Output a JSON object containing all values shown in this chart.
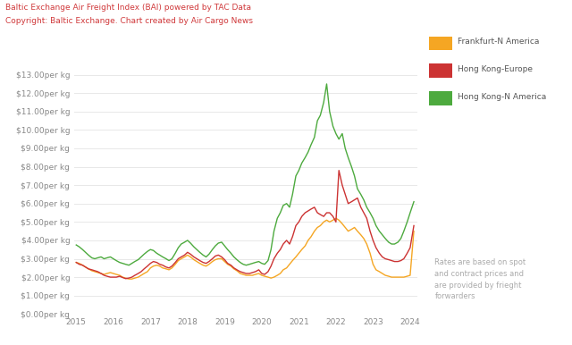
{
  "title_line1": "Baltic Exchange Air Freight Index (BAI) powered by TAC Data",
  "title_line2": "Copyright: Baltic Exchange. Chart created by Air Cargo News",
  "title_color": "#d0393b",
  "bg_color": "#ffffff",
  "grid_color": "#e8e8e8",
  "yticks": [
    0,
    1,
    2,
    3,
    4,
    5,
    6,
    7,
    8,
    9,
    10,
    11,
    12,
    13
  ],
  "ylim": [
    0,
    13.5
  ],
  "xlim_start": 2014.95,
  "xlim_end": 2024.2,
  "xticks": [
    2015,
    2016,
    2017,
    2018,
    2019,
    2020,
    2021,
    2022,
    2023,
    2024
  ],
  "legend_labels": [
    "Frankfurt-N America",
    "Hong Kong-Europe",
    "Hong Kong-N America"
  ],
  "legend_colors": [
    "#f5a623",
    "#cc3333",
    "#4daa3e"
  ],
  "footnote": "Rates are based on spot\nand contract prices and\nare provided by frieght\nforwarders",
  "series": {
    "frankfurt": {
      "color": "#f5a623",
      "data": [
        [
          2015.0,
          2.8
        ],
        [
          2015.08,
          2.75
        ],
        [
          2015.17,
          2.65
        ],
        [
          2015.25,
          2.55
        ],
        [
          2015.33,
          2.45
        ],
        [
          2015.42,
          2.35
        ],
        [
          2015.5,
          2.3
        ],
        [
          2015.58,
          2.25
        ],
        [
          2015.67,
          2.2
        ],
        [
          2015.75,
          2.15
        ],
        [
          2015.83,
          2.2
        ],
        [
          2015.92,
          2.25
        ],
        [
          2016.0,
          2.2
        ],
        [
          2016.08,
          2.15
        ],
        [
          2016.17,
          2.1
        ],
        [
          2016.25,
          2.0
        ],
        [
          2016.33,
          1.95
        ],
        [
          2016.42,
          1.9
        ],
        [
          2016.5,
          1.9
        ],
        [
          2016.58,
          1.95
        ],
        [
          2016.67,
          2.0
        ],
        [
          2016.75,
          2.1
        ],
        [
          2016.83,
          2.2
        ],
        [
          2016.92,
          2.3
        ],
        [
          2017.0,
          2.5
        ],
        [
          2017.08,
          2.6
        ],
        [
          2017.17,
          2.65
        ],
        [
          2017.25,
          2.6
        ],
        [
          2017.33,
          2.5
        ],
        [
          2017.42,
          2.45
        ],
        [
          2017.5,
          2.4
        ],
        [
          2017.58,
          2.5
        ],
        [
          2017.67,
          2.7
        ],
        [
          2017.75,
          2.9
        ],
        [
          2017.83,
          3.0
        ],
        [
          2017.92,
          3.1
        ],
        [
          2018.0,
          3.2
        ],
        [
          2018.08,
          3.1
        ],
        [
          2018.17,
          2.95
        ],
        [
          2018.25,
          2.85
        ],
        [
          2018.33,
          2.75
        ],
        [
          2018.42,
          2.65
        ],
        [
          2018.5,
          2.6
        ],
        [
          2018.58,
          2.7
        ],
        [
          2018.67,
          2.85
        ],
        [
          2018.75,
          2.95
        ],
        [
          2018.83,
          3.0
        ],
        [
          2018.92,
          3.0
        ],
        [
          2019.0,
          2.85
        ],
        [
          2019.08,
          2.7
        ],
        [
          2019.17,
          2.6
        ],
        [
          2019.25,
          2.45
        ],
        [
          2019.33,
          2.35
        ],
        [
          2019.42,
          2.2
        ],
        [
          2019.5,
          2.15
        ],
        [
          2019.58,
          2.1
        ],
        [
          2019.67,
          2.1
        ],
        [
          2019.75,
          2.1
        ],
        [
          2019.83,
          2.15
        ],
        [
          2019.92,
          2.2
        ],
        [
          2020.0,
          2.1
        ],
        [
          2020.08,
          2.05
        ],
        [
          2020.17,
          2.0
        ],
        [
          2020.25,
          1.95
        ],
        [
          2020.33,
          2.0
        ],
        [
          2020.42,
          2.1
        ],
        [
          2020.5,
          2.2
        ],
        [
          2020.58,
          2.4
        ],
        [
          2020.67,
          2.5
        ],
        [
          2020.75,
          2.7
        ],
        [
          2020.83,
          2.9
        ],
        [
          2020.92,
          3.1
        ],
        [
          2021.0,
          3.3
        ],
        [
          2021.08,
          3.5
        ],
        [
          2021.17,
          3.7
        ],
        [
          2021.25,
          4.0
        ],
        [
          2021.33,
          4.2
        ],
        [
          2021.42,
          4.5
        ],
        [
          2021.5,
          4.7
        ],
        [
          2021.58,
          4.8
        ],
        [
          2021.67,
          5.0
        ],
        [
          2021.75,
          5.1
        ],
        [
          2021.83,
          5.0
        ],
        [
          2021.92,
          5.1
        ],
        [
          2022.0,
          5.2
        ],
        [
          2022.08,
          5.1
        ],
        [
          2022.17,
          4.9
        ],
        [
          2022.25,
          4.7
        ],
        [
          2022.33,
          4.5
        ],
        [
          2022.42,
          4.6
        ],
        [
          2022.5,
          4.7
        ],
        [
          2022.58,
          4.5
        ],
        [
          2022.67,
          4.3
        ],
        [
          2022.75,
          4.1
        ],
        [
          2022.83,
          3.8
        ],
        [
          2022.92,
          3.3
        ],
        [
          2023.0,
          2.7
        ],
        [
          2023.08,
          2.4
        ],
        [
          2023.17,
          2.3
        ],
        [
          2023.25,
          2.2
        ],
        [
          2023.33,
          2.1
        ],
        [
          2023.42,
          2.05
        ],
        [
          2023.5,
          2.0
        ],
        [
          2023.58,
          2.0
        ],
        [
          2023.67,
          2.0
        ],
        [
          2023.75,
          2.0
        ],
        [
          2023.83,
          2.0
        ],
        [
          2023.92,
          2.05
        ],
        [
          2024.0,
          2.1
        ],
        [
          2024.1,
          4.5
        ]
      ]
    },
    "hk_europe": {
      "color": "#cc3333",
      "data": [
        [
          2015.0,
          2.8
        ],
        [
          2015.08,
          2.7
        ],
        [
          2015.17,
          2.65
        ],
        [
          2015.25,
          2.55
        ],
        [
          2015.33,
          2.45
        ],
        [
          2015.42,
          2.4
        ],
        [
          2015.5,
          2.35
        ],
        [
          2015.58,
          2.3
        ],
        [
          2015.67,
          2.2
        ],
        [
          2015.75,
          2.1
        ],
        [
          2015.83,
          2.05
        ],
        [
          2015.92,
          2.0
        ],
        [
          2016.0,
          2.0
        ],
        [
          2016.08,
          2.0
        ],
        [
          2016.17,
          2.05
        ],
        [
          2016.25,
          1.98
        ],
        [
          2016.33,
          1.92
        ],
        [
          2016.42,
          1.95
        ],
        [
          2016.5,
          2.0
        ],
        [
          2016.58,
          2.1
        ],
        [
          2016.67,
          2.2
        ],
        [
          2016.75,
          2.3
        ],
        [
          2016.83,
          2.45
        ],
        [
          2016.92,
          2.6
        ],
        [
          2017.0,
          2.75
        ],
        [
          2017.08,
          2.85
        ],
        [
          2017.17,
          2.8
        ],
        [
          2017.25,
          2.7
        ],
        [
          2017.33,
          2.65
        ],
        [
          2017.42,
          2.55
        ],
        [
          2017.5,
          2.5
        ],
        [
          2017.58,
          2.6
        ],
        [
          2017.67,
          2.8
        ],
        [
          2017.75,
          3.0
        ],
        [
          2017.83,
          3.1
        ],
        [
          2017.92,
          3.2
        ],
        [
          2018.0,
          3.35
        ],
        [
          2018.08,
          3.25
        ],
        [
          2018.17,
          3.1
        ],
        [
          2018.25,
          3.0
        ],
        [
          2018.33,
          2.9
        ],
        [
          2018.42,
          2.8
        ],
        [
          2018.5,
          2.75
        ],
        [
          2018.58,
          2.85
        ],
        [
          2018.67,
          3.0
        ],
        [
          2018.75,
          3.15
        ],
        [
          2018.83,
          3.2
        ],
        [
          2018.92,
          3.1
        ],
        [
          2019.0,
          2.95
        ],
        [
          2019.08,
          2.75
        ],
        [
          2019.17,
          2.65
        ],
        [
          2019.25,
          2.5
        ],
        [
          2019.33,
          2.4
        ],
        [
          2019.42,
          2.3
        ],
        [
          2019.5,
          2.25
        ],
        [
          2019.58,
          2.2
        ],
        [
          2019.67,
          2.2
        ],
        [
          2019.75,
          2.25
        ],
        [
          2019.83,
          2.3
        ],
        [
          2019.92,
          2.4
        ],
        [
          2020.0,
          2.2
        ],
        [
          2020.08,
          2.15
        ],
        [
          2020.17,
          2.3
        ],
        [
          2020.25,
          2.6
        ],
        [
          2020.33,
          3.0
        ],
        [
          2020.42,
          3.3
        ],
        [
          2020.5,
          3.5
        ],
        [
          2020.58,
          3.8
        ],
        [
          2020.67,
          4.0
        ],
        [
          2020.75,
          3.8
        ],
        [
          2020.83,
          4.2
        ],
        [
          2020.92,
          4.8
        ],
        [
          2021.0,
          5.0
        ],
        [
          2021.08,
          5.3
        ],
        [
          2021.17,
          5.5
        ],
        [
          2021.25,
          5.6
        ],
        [
          2021.33,
          5.7
        ],
        [
          2021.42,
          5.8
        ],
        [
          2021.5,
          5.5
        ],
        [
          2021.58,
          5.4
        ],
        [
          2021.67,
          5.3
        ],
        [
          2021.75,
          5.5
        ],
        [
          2021.83,
          5.5
        ],
        [
          2021.92,
          5.3
        ],
        [
          2022.0,
          5.0
        ],
        [
          2022.08,
          7.8
        ],
        [
          2022.17,
          7.0
        ],
        [
          2022.25,
          6.5
        ],
        [
          2022.33,
          6.0
        ],
        [
          2022.42,
          6.1
        ],
        [
          2022.5,
          6.2
        ],
        [
          2022.58,
          6.3
        ],
        [
          2022.67,
          5.8
        ],
        [
          2022.75,
          5.5
        ],
        [
          2022.83,
          5.2
        ],
        [
          2022.92,
          4.5
        ],
        [
          2023.0,
          4.0
        ],
        [
          2023.08,
          3.6
        ],
        [
          2023.17,
          3.3
        ],
        [
          2023.25,
          3.1
        ],
        [
          2023.33,
          3.0
        ],
        [
          2023.42,
          2.95
        ],
        [
          2023.5,
          2.9
        ],
        [
          2023.58,
          2.85
        ],
        [
          2023.67,
          2.85
        ],
        [
          2023.75,
          2.9
        ],
        [
          2023.83,
          3.0
        ],
        [
          2023.92,
          3.3
        ],
        [
          2024.0,
          3.6
        ],
        [
          2024.1,
          4.8
        ]
      ]
    },
    "hk_america": {
      "color": "#4daa3e",
      "data": [
        [
          2015.0,
          3.75
        ],
        [
          2015.08,
          3.65
        ],
        [
          2015.17,
          3.5
        ],
        [
          2015.25,
          3.35
        ],
        [
          2015.33,
          3.2
        ],
        [
          2015.42,
          3.05
        ],
        [
          2015.5,
          3.0
        ],
        [
          2015.58,
          3.05
        ],
        [
          2015.67,
          3.1
        ],
        [
          2015.75,
          3.0
        ],
        [
          2015.83,
          3.05
        ],
        [
          2015.92,
          3.1
        ],
        [
          2016.0,
          3.0
        ],
        [
          2016.08,
          2.9
        ],
        [
          2016.17,
          2.8
        ],
        [
          2016.25,
          2.75
        ],
        [
          2016.33,
          2.7
        ],
        [
          2016.42,
          2.65
        ],
        [
          2016.5,
          2.75
        ],
        [
          2016.58,
          2.85
        ],
        [
          2016.67,
          2.95
        ],
        [
          2016.75,
          3.1
        ],
        [
          2016.83,
          3.25
        ],
        [
          2016.92,
          3.4
        ],
        [
          2017.0,
          3.5
        ],
        [
          2017.08,
          3.45
        ],
        [
          2017.17,
          3.3
        ],
        [
          2017.25,
          3.2
        ],
        [
          2017.33,
          3.1
        ],
        [
          2017.42,
          3.0
        ],
        [
          2017.5,
          2.9
        ],
        [
          2017.58,
          3.0
        ],
        [
          2017.67,
          3.3
        ],
        [
          2017.75,
          3.6
        ],
        [
          2017.83,
          3.8
        ],
        [
          2017.92,
          3.9
        ],
        [
          2018.0,
          4.0
        ],
        [
          2018.08,
          3.85
        ],
        [
          2018.17,
          3.65
        ],
        [
          2018.25,
          3.5
        ],
        [
          2018.33,
          3.35
        ],
        [
          2018.42,
          3.2
        ],
        [
          2018.5,
          3.1
        ],
        [
          2018.58,
          3.25
        ],
        [
          2018.67,
          3.5
        ],
        [
          2018.75,
          3.7
        ],
        [
          2018.83,
          3.85
        ],
        [
          2018.92,
          3.9
        ],
        [
          2019.0,
          3.7
        ],
        [
          2019.08,
          3.5
        ],
        [
          2019.17,
          3.3
        ],
        [
          2019.25,
          3.1
        ],
        [
          2019.33,
          2.95
        ],
        [
          2019.42,
          2.8
        ],
        [
          2019.5,
          2.7
        ],
        [
          2019.58,
          2.65
        ],
        [
          2019.67,
          2.7
        ],
        [
          2019.75,
          2.75
        ],
        [
          2019.83,
          2.8
        ],
        [
          2019.92,
          2.85
        ],
        [
          2020.0,
          2.75
        ],
        [
          2020.08,
          2.7
        ],
        [
          2020.17,
          2.9
        ],
        [
          2020.25,
          3.5
        ],
        [
          2020.33,
          4.5
        ],
        [
          2020.42,
          5.2
        ],
        [
          2020.5,
          5.5
        ],
        [
          2020.58,
          5.9
        ],
        [
          2020.67,
          6.0
        ],
        [
          2020.75,
          5.8
        ],
        [
          2020.83,
          6.5
        ],
        [
          2020.92,
          7.5
        ],
        [
          2021.0,
          7.8
        ],
        [
          2021.08,
          8.2
        ],
        [
          2021.17,
          8.5
        ],
        [
          2021.25,
          8.8
        ],
        [
          2021.33,
          9.2
        ],
        [
          2021.42,
          9.6
        ],
        [
          2021.5,
          10.5
        ],
        [
          2021.58,
          10.8
        ],
        [
          2021.67,
          11.5
        ],
        [
          2021.75,
          12.5
        ],
        [
          2021.83,
          11.0
        ],
        [
          2021.92,
          10.2
        ],
        [
          2022.0,
          9.8
        ],
        [
          2022.08,
          9.5
        ],
        [
          2022.17,
          9.8
        ],
        [
          2022.25,
          9.0
        ],
        [
          2022.33,
          8.5
        ],
        [
          2022.42,
          8.0
        ],
        [
          2022.5,
          7.5
        ],
        [
          2022.58,
          6.8
        ],
        [
          2022.67,
          6.5
        ],
        [
          2022.75,
          6.2
        ],
        [
          2022.83,
          5.8
        ],
        [
          2022.92,
          5.5
        ],
        [
          2023.0,
          5.2
        ],
        [
          2023.08,
          4.8
        ],
        [
          2023.17,
          4.5
        ],
        [
          2023.25,
          4.3
        ],
        [
          2023.33,
          4.1
        ],
        [
          2023.42,
          3.9
        ],
        [
          2023.5,
          3.8
        ],
        [
          2023.58,
          3.8
        ],
        [
          2023.67,
          3.9
        ],
        [
          2023.75,
          4.1
        ],
        [
          2023.83,
          4.5
        ],
        [
          2023.92,
          5.0
        ],
        [
          2024.0,
          5.5
        ],
        [
          2024.1,
          6.1
        ]
      ]
    }
  }
}
